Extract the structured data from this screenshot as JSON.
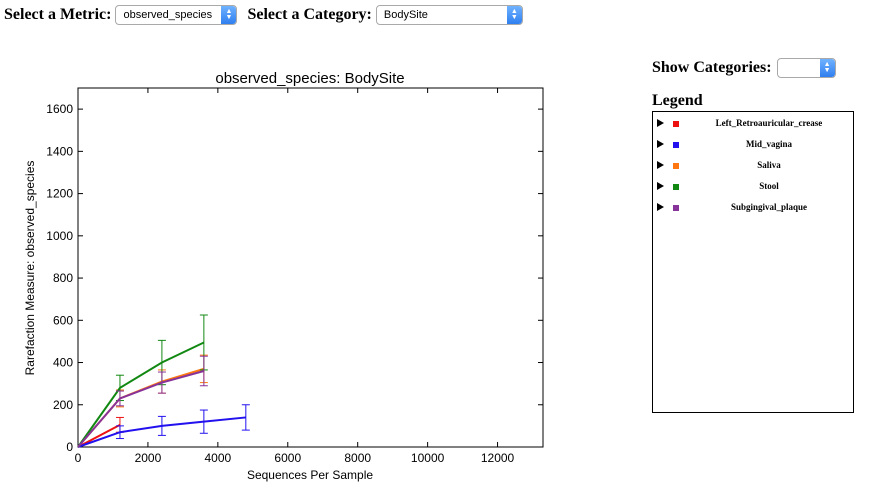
{
  "controls": {
    "metric_label": "Select a Metric:",
    "metric_value": "observed_species",
    "category_label": "Select a Category:",
    "category_value": "BodySite",
    "show_categories_label": "Show Categories:",
    "show_categories_value": ""
  },
  "legend": {
    "title": "Legend",
    "items": [
      {
        "label": "Left_Retroauricular_crease",
        "color": "#ee1111"
      },
      {
        "label": "Mid_vagina",
        "color": "#2211ee"
      },
      {
        "label": "Saliva",
        "color": "#ff7711"
      },
      {
        "label": "Stool",
        "color": "#118811"
      },
      {
        "label": "Subgingival_plaque",
        "color": "#883399"
      }
    ]
  },
  "chart_data": {
    "type": "line",
    "title": "observed_species: BodySite",
    "xlabel": "Sequences Per Sample",
    "ylabel": "Rarefaction Measure: observed_species",
    "xlim": [
      0,
      13300
    ],
    "ylim": [
      0,
      1700
    ],
    "xticks": [
      0,
      2000,
      4000,
      6000,
      8000,
      10000,
      12000
    ],
    "yticks": [
      0,
      200,
      400,
      600,
      800,
      1000,
      1200,
      1400,
      1600
    ],
    "grid": false,
    "series": [
      {
        "name": "Left_Retroauricular_crease",
        "color": "#ee1111",
        "x": [
          0,
          1200
        ],
        "y": [
          0,
          105
        ],
        "err": [
          0,
          35
        ]
      },
      {
        "name": "Mid_vagina",
        "color": "#2211ee",
        "x": [
          0,
          1200,
          2400,
          3600,
          4800
        ],
        "y": [
          0,
          70,
          100,
          120,
          140
        ],
        "err": [
          0,
          30,
          45,
          55,
          60
        ]
      },
      {
        "name": "Saliva",
        "color": "#ff7711",
        "x": [
          0,
          1200,
          2400,
          3600
        ],
        "y": [
          0,
          230,
          310,
          370
        ],
        "err": [
          0,
          40,
          55,
          65
        ]
      },
      {
        "name": "Stool",
        "color": "#118811",
        "x": [
          0,
          1200,
          2400,
          3600
        ],
        "y": [
          0,
          280,
          400,
          495
        ],
        "err": [
          0,
          60,
          105,
          130
        ]
      },
      {
        "name": "Subgingival_plaque",
        "color": "#883399",
        "x": [
          0,
          1200,
          2400,
          3600
        ],
        "y": [
          0,
          230,
          305,
          360
        ],
        "err": [
          0,
          35,
          50,
          70
        ]
      }
    ]
  }
}
